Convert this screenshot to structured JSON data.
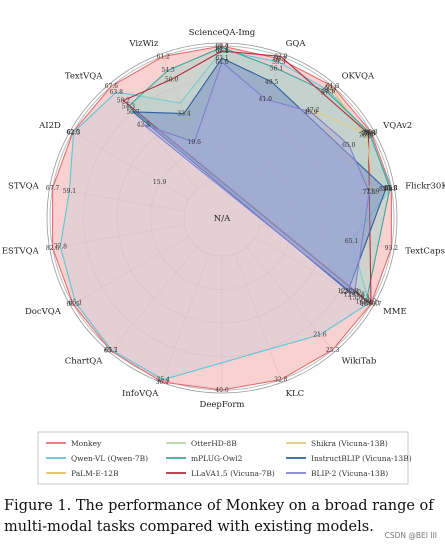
{
  "chart_data": {
    "type": "radar",
    "center_label": "N/A",
    "axes": [
      "ScienceQA-Img",
      "GQA",
      "OKVQA",
      "VQAv2",
      "Flickr30K",
      "TextCaps",
      "MME",
      "WikiTab",
      "KLC",
      "DeepForm",
      "InfoVQA",
      "ChartQA",
      "DocVQA",
      "ESTVQA",
      "STVQA",
      "AI2D",
      "TextVQA",
      "VizWiz"
    ],
    "max_radius_values": [
      69.4,
      62.0,
      61.3,
      80.3,
      86.1,
      93.2,
      1510.7,
      25.3,
      32.8,
      40.6,
      35.4,
      65.1,
      66.5,
      82.6,
      67.7,
      62.6,
      67.6,
      61.2
    ],
    "series": [
      {
        "name": "Monkey",
        "color": "#e07070",
        "fill": "#f7b8b8",
        "values": [
          69.4,
          60.7,
          61.3,
          80.3,
          86.1,
          93.2,
          1510.7,
          25.3,
          32.8,
          40.6,
          36.1,
          65.7,
          66.5,
          82.6,
          67.7,
          62.6,
          67.6,
          61.2
        ]
      },
      {
        "name": "Qwen-VL (Qwen-7B)",
        "color": "#5bc8d6",
        "fill": "#c8ccd6",
        "values": [
          67.1,
          59.3,
          58.6,
          78.8,
          85.8,
          65.1,
          1487.5,
          21.6,
          null,
          null,
          35.4,
          65.1,
          65.1,
          77.8,
          59.1,
          62.3,
          63.8,
          38.5
        ]
      },
      {
        "name": "PaLM-E-12B",
        "color": "#e0c060",
        "fill": "none",
        "values": [
          null,
          null,
          60.1,
          76.2,
          null,
          null,
          null,
          null,
          null,
          null,
          null,
          null,
          null,
          null,
          null,
          null,
          null,
          null
        ]
      },
      {
        "name": "OtterHD-8B",
        "color": "#b0d8a0",
        "fill": "none",
        "values": [
          null,
          null,
          null,
          null,
          null,
          null,
          1293.8,
          null,
          null,
          null,
          null,
          null,
          null,
          null,
          null,
          null,
          null,
          null
        ]
      },
      {
        "name": "mPLUG-Owl2",
        "color": "#3aa89a",
        "fill": "#9ed4c8",
        "values": [
          68.7,
          56.1,
          57.7,
          79.4,
          85.1,
          null,
          1450.2,
          null,
          null,
          null,
          null,
          null,
          null,
          null,
          null,
          null,
          54.3,
          54.5
        ]
      },
      {
        "name": "LLaVA1.5 (Vicuna-7B)",
        "color": "#b03040",
        "fill": "none",
        "values": [
          66.8,
          62.0,
          null,
          78.5,
          null,
          null,
          1510.7,
          null,
          null,
          null,
          null,
          null,
          null,
          null,
          null,
          null,
          58.2,
          50.0
        ]
      },
      {
        "name": "Shikra (Vicuna-13B)",
        "color": "#e8c880",
        "fill": "none",
        "values": [
          null,
          null,
          47.2,
          77.4,
          73.9,
          null,
          null,
          null,
          null,
          null,
          null,
          null,
          null,
          null,
          null,
          null,
          null,
          null
        ]
      },
      {
        "name": "InstructBLIP (Vicuna-13B)",
        "color": "#3060a0",
        "fill": "#6a86c0",
        "values": [
          63.1,
          49.5,
          null,
          null,
          82.4,
          null,
          1212.8,
          null,
          null,
          null,
          null,
          null,
          null,
          null,
          null,
          null,
          50.7,
          33.4
        ]
      },
      {
        "name": "BLIP-2 (Vicuna-13B)",
        "color": "#8080d0",
        "fill": "#a8a8e0",
        "values": [
          61.0,
          41.0,
          45.9,
          65.0,
          71.6,
          null,
          1293.8,
          null,
          null,
          null,
          null,
          null,
          null,
          null,
          null,
          null,
          42.5,
          19.6
        ]
      }
    ],
    "value_labels": [
      {
        "axis": 0,
        "value": 69.4,
        "text": "69.4"
      },
      {
        "axis": 0,
        "value": 68.7,
        "text": "68.7"
      },
      {
        "axis": 0,
        "value": 67.1,
        "text": "67.1"
      },
      {
        "axis": 0,
        "value": 66.8,
        "text": "66.8"
      },
      {
        "axis": 0,
        "value": 63.1,
        "text": "63.1"
      },
      {
        "axis": 0,
        "value": 61.0,
        "text": "61.0"
      },
      {
        "axis": 1,
        "value": 62.0,
        "text": "62.0"
      },
      {
        "axis": 1,
        "value": 60.7,
        "text": "60.7"
      },
      {
        "axis": 1,
        "value": 59.3,
        "text": "59.3"
      },
      {
        "axis": 1,
        "value": 56.1,
        "text": "56.1"
      },
      {
        "axis": 1,
        "value": 49.5,
        "text": "49.5"
      },
      {
        "axis": 1,
        "value": 41.0,
        "text": "41.0"
      },
      {
        "axis": 2,
        "value": 61.3,
        "text": "61.3"
      },
      {
        "axis": 2,
        "value": 60.1,
        "text": "60.1"
      },
      {
        "axis": 2,
        "value": 58.6,
        "text": "58.6"
      },
      {
        "axis": 2,
        "value": 57.7,
        "text": "57.7"
      },
      {
        "axis": 2,
        "value": 47.2,
        "text": "47.2"
      },
      {
        "axis": 2,
        "value": 45.9,
        "text": "45.9"
      },
      {
        "axis": 3,
        "value": 80.3,
        "text": "80.3"
      },
      {
        "axis": 3,
        "value": 79.4,
        "text": "79.4"
      },
      {
        "axis": 3,
        "value": 78.8,
        "text": "78.8"
      },
      {
        "axis": 3,
        "value": 78.5,
        "text": "78.5"
      },
      {
        "axis": 3,
        "value": 77.4,
        "text": "77.4"
      },
      {
        "axis": 3,
        "value": 76.2,
        "text": "76.2"
      },
      {
        "axis": 3,
        "value": 65.0,
        "text": "65.0"
      },
      {
        "axis": 4,
        "value": 86.1,
        "text": "86.1"
      },
      {
        "axis": 4,
        "value": 85.8,
        "text": "85.8"
      },
      {
        "axis": 4,
        "value": 85.1,
        "text": "85.1"
      },
      {
        "axis": 4,
        "value": 82.4,
        "text": "82.4"
      },
      {
        "axis": 4,
        "value": 73.9,
        "text": "73.9"
      },
      {
        "axis": 4,
        "value": 71.6,
        "text": "71.6"
      },
      {
        "axis": 5,
        "value": 93.2,
        "text": "93.2"
      },
      {
        "axis": 5,
        "value": 65.1,
        "text": "65.1"
      },
      {
        "axis": 6,
        "value": 1510.7,
        "text": "1510.7"
      },
      {
        "axis": 6,
        "value": 1487.5,
        "text": "1487.5"
      },
      {
        "axis": 6,
        "value": 1450.2,
        "text": "1450.2"
      },
      {
        "axis": 6,
        "value": 1359.3,
        "text": "1359.3"
      },
      {
        "axis": 6,
        "value": 1293.8,
        "text": "1293.8"
      },
      {
        "axis": 6,
        "value": 1243.0,
        "text": "1243.0"
      },
      {
        "axis": 6,
        "value": 1212.8,
        "text": "1212.8"
      },
      {
        "axis": 7,
        "value": 25.3,
        "text": "25.3"
      },
      {
        "axis": 7,
        "value": 21.6,
        "text": "21.6"
      },
      {
        "axis": 8,
        "value": 32.8,
        "text": "32.8"
      },
      {
        "axis": 9,
        "value": 40.6,
        "text": "40.6"
      },
      {
        "axis": 10,
        "value": 36.1,
        "text": "36.1"
      },
      {
        "axis": 10,
        "value": 35.4,
        "text": "35.4"
      },
      {
        "axis": 11,
        "value": 65.7,
        "text": "65.7"
      },
      {
        "axis": 11,
        "value": 65.1,
        "text": "65.1"
      },
      {
        "axis": 12,
        "value": 66.5,
        "text": "66.5"
      },
      {
        "axis": 12,
        "value": 65.1,
        "text": "65.1"
      },
      {
        "axis": 13,
        "value": 82.6,
        "text": "82.6"
      },
      {
        "axis": 13,
        "value": 77.8,
        "text": "77.8"
      },
      {
        "axis": 14,
        "value": 67.7,
        "text": "67.7"
      },
      {
        "axis": 14,
        "value": 59.1,
        "text": "59.1"
      },
      {
        "axis": 15,
        "value": 62.6,
        "text": "62.6"
      },
      {
        "axis": 15,
        "value": 62.3,
        "text": "62.3"
      },
      {
        "axis": 15,
        "value": 15.9,
        "text": "15.9"
      },
      {
        "axis": 16,
        "value": 67.6,
        "text": "67.6"
      },
      {
        "axis": 16,
        "value": 63.8,
        "text": "63.8"
      },
      {
        "axis": 16,
        "value": 58.2,
        "text": "58.2"
      },
      {
        "axis": 16,
        "value": 54.3,
        "text": "54.3"
      },
      {
        "axis": 16,
        "value": 50.7,
        "text": "50.7"
      },
      {
        "axis": 16,
        "value": 42.5,
        "text": "42.5"
      },
      {
        "axis": 17,
        "value": 61.2,
        "text": "61.2"
      },
      {
        "axis": 17,
        "value": 54.5,
        "text": "54.5"
      },
      {
        "axis": 17,
        "value": 50.0,
        "text": "50.0"
      },
      {
        "axis": 17,
        "value": 33.4,
        "text": "33.4"
      },
      {
        "axis": 17,
        "value": 19.6,
        "text": "19.6"
      }
    ],
    "legend": {
      "placement": "bottom",
      "entries": [
        {
          "name": "Monkey",
          "color": "#e07070"
        },
        {
          "name": "OtterHD-8B",
          "color": "#b0d8a0"
        },
        {
          "name": "Shikra (Vicuna-13B)",
          "color": "#e8c880"
        },
        {
          "name": "Qwen-VL (Qwen-7B)",
          "color": "#5bc8d6"
        },
        {
          "name": "mPLUG-Owl2",
          "color": "#3aa89a"
        },
        {
          "name": "InstructBLIP (Vicuna-13B)",
          "color": "#3060a0"
        },
        {
          "name": "PaLM-E-12B",
          "color": "#e0c060"
        },
        {
          "name": "LLaVA1.5 (Vicuna-7B)",
          "color": "#b03040"
        },
        {
          "name": "BLIP-2 (Vicuna-13B)",
          "color": "#8080d0"
        }
      ]
    }
  },
  "caption": "Figure 1. The performance of Monkey on a broad range of multi-modal tasks compared with existing models.",
  "watermark": "CSDN @BEI III"
}
